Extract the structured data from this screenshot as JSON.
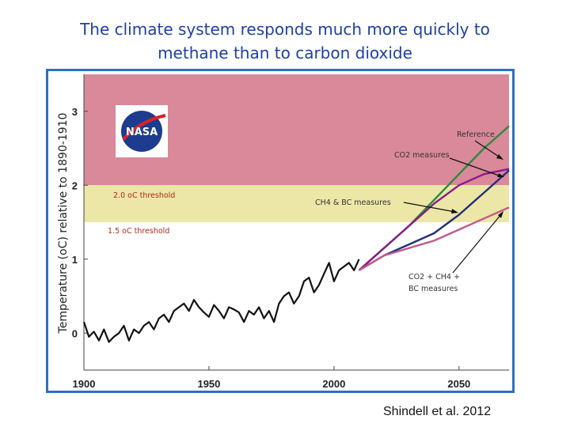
{
  "title_line1": "The climate system responds much more quickly to",
  "title_line2": "methane than to carbon dioxide",
  "citation": "Shindell et al. 2012",
  "logo_text": "NASA",
  "colors": {
    "title": "#1f3fa8",
    "frame_border": "#2f6fc0",
    "upper_band": "#d9899a",
    "threshold_band": "#ece7a6",
    "observed": "#111111",
    "reference": "#2e8a3e",
    "co2_measures": "#8a1a8a",
    "ch4_bc_measures": "#22307a",
    "combined_measures": "#c25a8a"
  },
  "chart_data": {
    "type": "line",
    "title": "",
    "xlabel": "",
    "ylabel": "Temperature (oC) relative to 1890-1910",
    "xlim": [
      1900,
      2070
    ],
    "ylim": [
      -0.5,
      3.5
    ],
    "x_ticks": [
      1900,
      1950,
      2000,
      2050
    ],
    "y_ticks": [
      0,
      1,
      2,
      3
    ],
    "bands": [
      {
        "from": 2.0,
        "to": 3.5,
        "color": "#d9899a"
      },
      {
        "from": 1.5,
        "to": 2.0,
        "color": "#ece7a6"
      }
    ],
    "threshold_labels": [
      {
        "text": "2.0 oC threshold",
        "y": 2.0
      },
      {
        "text": "1.5 oC threshold",
        "y": 1.5
      }
    ],
    "annotations": [
      {
        "text": "Reference"
      },
      {
        "text": "CO2 measures"
      },
      {
        "text": "CH4 & BC measures"
      },
      {
        "text": "CO2 + CH4 +"
      },
      {
        "text": "BC measures"
      }
    ],
    "series": [
      {
        "color": "#111111",
        "x": [
          1900,
          1902,
          1904,
          1906,
          1908,
          1910,
          1912,
          1914,
          1916,
          1918,
          1920,
          1922,
          1924,
          1926,
          1928,
          1930,
          1932,
          1934,
          1936,
          1938,
          1940,
          1942,
          1944,
          1946,
          1948,
          1950,
          1952,
          1954,
          1956,
          1958,
          1960,
          1962,
          1964,
          1966,
          1968,
          1970,
          1972,
          1974,
          1976,
          1978,
          1980,
          1982,
          1984,
          1986,
          1988,
          1990,
          1992,
          1994,
          1996,
          1998,
          2000,
          2002,
          2004,
          2006,
          2008,
          2010
        ],
        "y": [
          0.15,
          -0.05,
          0.02,
          -0.1,
          0.05,
          -0.12,
          -0.05,
          0.0,
          0.1,
          -0.1,
          0.05,
          0.0,
          0.1,
          0.15,
          0.05,
          0.2,
          0.25,
          0.15,
          0.3,
          0.35,
          0.4,
          0.3,
          0.45,
          0.35,
          0.28,
          0.22,
          0.38,
          0.3,
          0.2,
          0.35,
          0.32,
          0.28,
          0.15,
          0.3,
          0.25,
          0.35,
          0.2,
          0.3,
          0.15,
          0.4,
          0.5,
          0.55,
          0.4,
          0.5,
          0.7,
          0.75,
          0.55,
          0.65,
          0.8,
          0.95,
          0.7,
          0.85,
          0.9,
          0.95,
          0.85,
          1.0
        ]
      },
      {
        "name": "Reference",
        "color": "#2e8a3e",
        "x": [
          2010,
          2020,
          2030,
          2040,
          2050,
          2060,
          2070
        ],
        "y": [
          0.85,
          1.15,
          1.45,
          1.8,
          2.15,
          2.5,
          2.8
        ]
      },
      {
        "name": "CO2 measures",
        "color": "#8a1a8a",
        "x": [
          2010,
          2020,
          2030,
          2040,
          2050,
          2060,
          2070
        ],
        "y": [
          0.85,
          1.15,
          1.45,
          1.75,
          2.0,
          2.15,
          2.22
        ]
      },
      {
        "name": "CH4 & BC measures",
        "color": "#22307a",
        "x": [
          2010,
          2020,
          2030,
          2040,
          2050,
          2060,
          2070
        ],
        "y": [
          0.85,
          1.05,
          1.2,
          1.35,
          1.6,
          1.9,
          2.2
        ]
      },
      {
        "name": "CO2 + CH4 + BC measures",
        "color": "#c25a8a",
        "x": [
          2010,
          2020,
          2030,
          2040,
          2050,
          2060,
          2070
        ],
        "y": [
          0.85,
          1.05,
          1.15,
          1.25,
          1.4,
          1.55,
          1.7
        ]
      }
    ]
  }
}
